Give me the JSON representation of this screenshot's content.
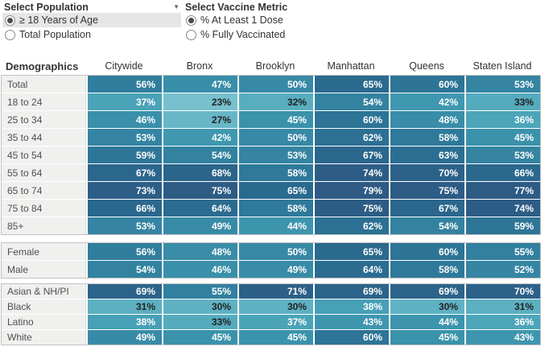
{
  "controls": {
    "population": {
      "title": "Select Population",
      "dropdown_icon": "caret-down",
      "options": [
        {
          "label": "≥ 18 Years of Age",
          "selected": true
        },
        {
          "label": "Total Population",
          "selected": false
        }
      ]
    },
    "metric": {
      "title": "Select Vaccine Metric",
      "options": [
        {
          "label": "% At Least 1 Dose",
          "selected": true
        },
        {
          "label": "% Fully Vaccinated",
          "selected": false
        }
      ]
    }
  },
  "chart_data": {
    "type": "heatmap",
    "row_header": "Demographics",
    "columns": [
      "Citywide",
      "Bronx",
      "Brooklyn",
      "Manhattan",
      "Queens",
      "Staten Island"
    ],
    "unit": "%",
    "cell_suffix": "%",
    "sections": [
      {
        "name": "total_and_age",
        "rows": [
          {
            "label": "Total",
            "values": [
              56,
              47,
              50,
              65,
              60,
              53
            ]
          },
          {
            "label": "18 to 24",
            "values": [
              37,
              23,
              32,
              54,
              42,
              33
            ]
          },
          {
            "label": "25 to 34",
            "values": [
              46,
              27,
              45,
              60,
              48,
              36
            ]
          },
          {
            "label": "35 to 44",
            "values": [
              53,
              42,
              50,
              62,
              58,
              45
            ]
          },
          {
            "label": "45 to 54",
            "values": [
              59,
              54,
              53,
              67,
              63,
              53
            ]
          },
          {
            "label": "55 to 64",
            "values": [
              67,
              68,
              58,
              74,
              70,
              66
            ]
          },
          {
            "label": "65 to 74",
            "values": [
              73,
              75,
              65,
              79,
              75,
              77
            ]
          },
          {
            "label": "75 to 84",
            "values": [
              66,
              64,
              58,
              75,
              67,
              74
            ]
          },
          {
            "label": "85+",
            "values": [
              53,
              49,
              44,
              62,
              54,
              59
            ]
          }
        ]
      },
      {
        "name": "sex",
        "rows": [
          {
            "label": "Female",
            "values": [
              56,
              48,
              50,
              65,
              60,
              55
            ]
          },
          {
            "label": "Male",
            "values": [
              54,
              46,
              49,
              64,
              58,
              52
            ]
          }
        ]
      },
      {
        "name": "race_ethnicity",
        "rows": [
          {
            "label": "Asian & NH/PI",
            "values": [
              69,
              55,
              71,
              69,
              69,
              70
            ]
          },
          {
            "label": "Black",
            "values": [
              31,
              30,
              30,
              38,
              30,
              31
            ]
          },
          {
            "label": "Latino",
            "values": [
              38,
              33,
              37,
              43,
              44,
              36
            ]
          },
          {
            "label": "White",
            "values": [
              49,
              45,
              45,
              60,
              45,
              43
            ]
          }
        ]
      }
    ],
    "color_scale": {
      "anchors": [
        [
          20,
          "#85c8d2"
        ],
        [
          25,
          "#6ebbca"
        ],
        [
          30,
          "#5fb2c3"
        ],
        [
          35,
          "#4ea7ba"
        ],
        [
          40,
          "#439cb3"
        ],
        [
          45,
          "#3a92ab"
        ],
        [
          50,
          "#3889a6"
        ],
        [
          55,
          "#31809f"
        ],
        [
          60,
          "#2d7496"
        ],
        [
          65,
          "#2b6a8f"
        ],
        [
          70,
          "#2c6189"
        ],
        [
          75,
          "#2d5c85"
        ],
        [
          80,
          "#2e5a83"
        ]
      ],
      "dark_text_below": 35,
      "dark_text_color": "#222222",
      "light_text_color": "#ffffff"
    }
  }
}
